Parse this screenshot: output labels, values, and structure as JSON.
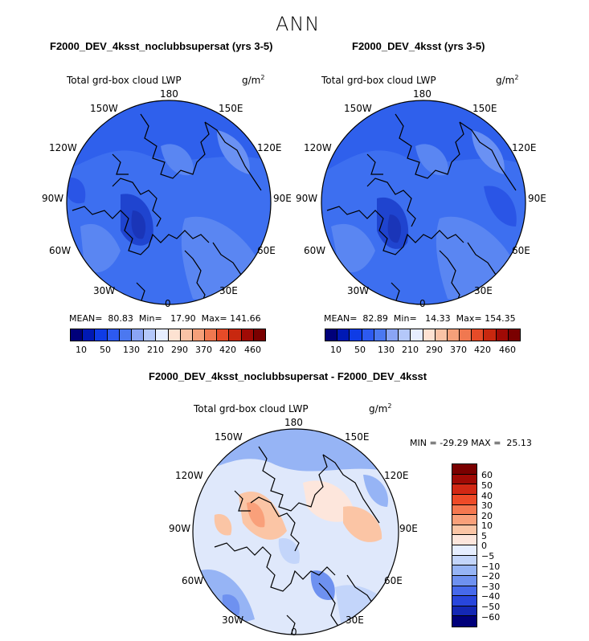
{
  "suptitle": "ANN",
  "colors": {
    "abs_scale": [
      "#00007a",
      "#0019b4",
      "#0f3ce6",
      "#2d5af0",
      "#4b78f0",
      "#8aa5f5",
      "#b4c8fa",
      "#e6eeff",
      "#fde2d2",
      "#f9c3a6",
      "#f5a07a",
      "#f07850",
      "#e64b28",
      "#c8280f",
      "#a00a05",
      "#7a0000"
    ],
    "diff_scale": [
      "#7a0000",
      "#a00a05",
      "#d22814",
      "#ee4b28",
      "#f57850",
      "#f9a07a",
      "#fbc5a5",
      "#fde6dc",
      "#e6eeff",
      "#c3d5fa",
      "#96b4f5",
      "#6e91f0",
      "#4669eb",
      "#2846dc",
      "#1428b4",
      "#00007a"
    ],
    "panel_base": "#3d6ff0",
    "land_dark": "#2048d8",
    "land_light": "#6a91f3",
    "diff_base": "#dfe8fb"
  },
  "panels": [
    {
      "run_title": "F2000_DEV_4ksst_noclubbsupersat (yrs 3-5)",
      "variable": "Total grd-box cloud LWP",
      "units": "g/m",
      "units_sup": "2",
      "mean_label": "MEAN=",
      "mean": "80.83",
      "min_label": "Min=",
      "min": "17.90",
      "max_label": "Max=",
      "max": "141.66",
      "colorbar_labels": [
        "10",
        "50",
        "130",
        "210",
        "290",
        "370",
        "420",
        "460"
      ]
    },
    {
      "run_title": "F2000_DEV_4ksst (yrs 3-5)",
      "variable": "Total grd-box cloud LWP",
      "units": "g/m",
      "units_sup": "2",
      "mean_label": "MEAN=",
      "mean": "82.89",
      "min_label": "Min=",
      "min": "14.33",
      "max_label": "Max=",
      "max": "154.35",
      "colorbar_labels": [
        "10",
        "50",
        "130",
        "210",
        "290",
        "370",
        "420",
        "460"
      ]
    }
  ],
  "diff": {
    "title": "F2000_DEV_4ksst_noclubbsupersat - F2000_DEV_4ksst",
    "variable": "Total grd-box cloud LWP",
    "units": "g/m",
    "units_sup": "2",
    "min_label": "MIN =",
    "min": "-29.29",
    "max_label": "MAX =",
    "max": "25.13",
    "colorbar_labels": [
      "60",
      "50",
      "40",
      "30",
      "20",
      "10",
      "5",
      "0",
      "−5",
      "−10",
      "−20",
      "−30",
      "−40",
      "−50",
      "−60"
    ]
  },
  "lon_labels": {
    "top": "180",
    "tl": "150W",
    "tr": "150E",
    "ul": "120W",
    "ur": "120E",
    "l": "90W",
    "r": "90E",
    "ll": "60W",
    "lr": "60E",
    "bl": "30W",
    "br": "30E",
    "bottom": "0"
  }
}
